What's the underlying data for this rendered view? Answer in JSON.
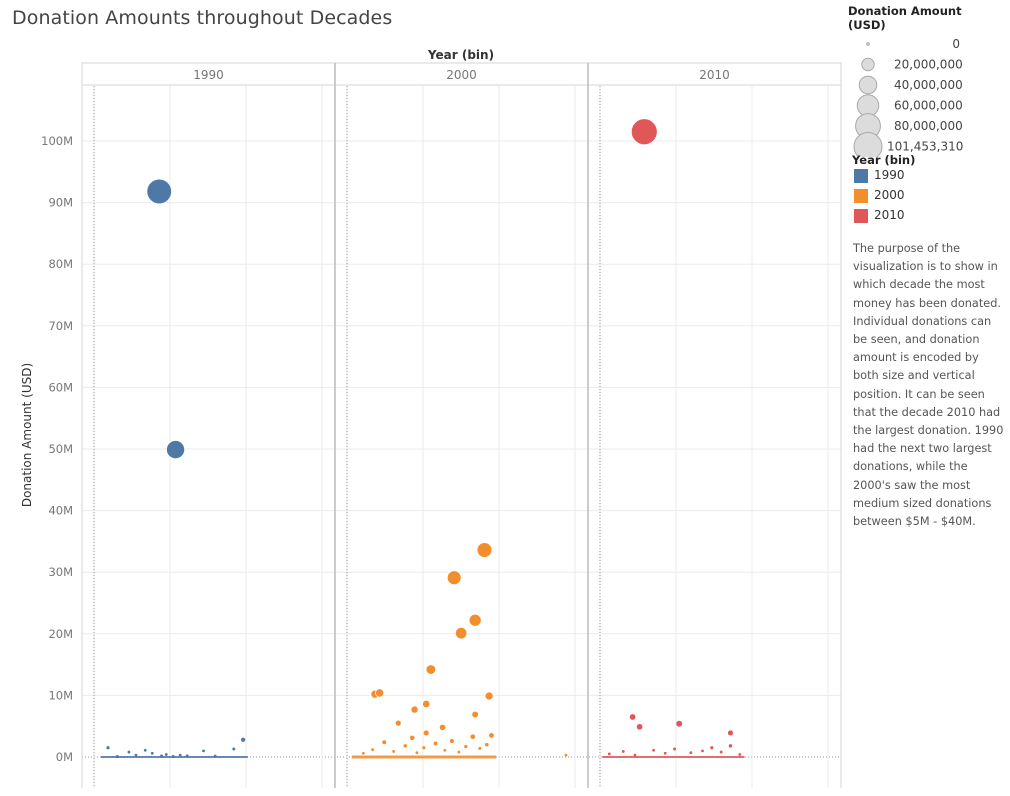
{
  "page_title": "Donation Amounts throughout Decades",
  "description": "The purpose of the visualization is to show in which decade the most money has been donated. Individual donations can be seen, and donation amount is encoded by both size and vertical position. It can be seen that the decade 2010 had the largest donation. 1990 had the next two largest donations, while the 2000's saw the most medium sized donations between $5M - $40M.",
  "size_legend": {
    "title": "Donation Amount (USD)",
    "entries": [
      {
        "label": "0",
        "value": 0
      },
      {
        "label": "20,000,000",
        "value": 20000000
      },
      {
        "label": "40,000,000",
        "value": 40000000
      },
      {
        "label": "60,000,000",
        "value": 60000000
      },
      {
        "label": "80,000,000",
        "value": 80000000
      },
      {
        "label": "101,453,310",
        "value": 101453310
      }
    ]
  },
  "color_legend": {
    "title": "Year (bin)",
    "entries": [
      {
        "label": "1990",
        "color": "#4e79a7"
      },
      {
        "label": "2000",
        "color": "#f28e2b"
      },
      {
        "label": "2010",
        "color": "#e15759"
      }
    ]
  },
  "chart_data": {
    "type": "scatter",
    "title": "Donation Amounts throughout Decades",
    "column_header": "Year (bin)",
    "panels": [
      "1990",
      "2000",
      "2010"
    ],
    "ylabel": "Donation Amount (USD)",
    "ylim": [
      -5000000,
      110000000
    ],
    "yticks": [
      0,
      10000000,
      20000000,
      30000000,
      40000000,
      50000000,
      60000000,
      70000000,
      80000000,
      90000000,
      100000000
    ],
    "ytick_labels": [
      "0M",
      "10M",
      "20M",
      "30M",
      "40M",
      "50M",
      "60M",
      "70M",
      "80M",
      "90M",
      "100M"
    ],
    "x_within_panel_range": [
      0,
      10
    ],
    "grid": true,
    "size_encodes": "Donation Amount (USD)",
    "size_max_value": 101453310,
    "series": [
      {
        "name": "1990",
        "color": "#4e79a7",
        "points": [
          {
            "x": 2.8,
            "y": 91800000
          },
          {
            "x": 3.5,
            "y": 49900000
          },
          {
            "x": 0.6,
            "y": 1500000
          },
          {
            "x": 1.5,
            "y": 800000
          },
          {
            "x": 1.8,
            "y": 300000
          },
          {
            "x": 2.2,
            "y": 1100000
          },
          {
            "x": 2.5,
            "y": 600000
          },
          {
            "x": 2.9,
            "y": 200000
          },
          {
            "x": 3.1,
            "y": 400000
          },
          {
            "x": 3.4,
            "y": 100000
          },
          {
            "x": 3.7,
            "y": 300000
          },
          {
            "x": 4.7,
            "y": 1000000
          },
          {
            "x": 6.0,
            "y": 1300000
          },
          {
            "x": 6.4,
            "y": 2800000
          },
          {
            "x": 1.0,
            "y": 100000
          },
          {
            "x": 4.0,
            "y": 200000
          },
          {
            "x": 5.2,
            "y": 150000
          }
        ]
      },
      {
        "name": "2000",
        "color": "#f28e2b",
        "points": [
          {
            "x": 5.9,
            "y": 33600000
          },
          {
            "x": 4.6,
            "y": 29100000
          },
          {
            "x": 5.5,
            "y": 22200000
          },
          {
            "x": 4.9,
            "y": 20100000
          },
          {
            "x": 3.6,
            "y": 14200000
          },
          {
            "x": 1.2,
            "y": 10200000
          },
          {
            "x": 1.4,
            "y": 10400000
          },
          {
            "x": 6.1,
            "y": 9900000
          },
          {
            "x": 2.9,
            "y": 7700000
          },
          {
            "x": 3.4,
            "y": 8600000
          },
          {
            "x": 5.5,
            "y": 6900000
          },
          {
            "x": 2.2,
            "y": 5500000
          },
          {
            "x": 4.1,
            "y": 4800000
          },
          {
            "x": 3.4,
            "y": 3900000
          },
          {
            "x": 0.7,
            "y": 600000
          },
          {
            "x": 1.1,
            "y": 1200000
          },
          {
            "x": 1.6,
            "y": 2400000
          },
          {
            "x": 2.0,
            "y": 900000
          },
          {
            "x": 2.5,
            "y": 1800000
          },
          {
            "x": 2.8,
            "y": 3100000
          },
          {
            "x": 3.0,
            "y": 700000
          },
          {
            "x": 3.3,
            "y": 1500000
          },
          {
            "x": 3.8,
            "y": 2200000
          },
          {
            "x": 4.2,
            "y": 1100000
          },
          {
            "x": 4.5,
            "y": 2600000
          },
          {
            "x": 4.8,
            "y": 800000
          },
          {
            "x": 5.1,
            "y": 1700000
          },
          {
            "x": 5.4,
            "y": 3300000
          },
          {
            "x": 5.7,
            "y": 1400000
          },
          {
            "x": 6.0,
            "y": 2000000
          },
          {
            "x": 6.2,
            "y": 3500000
          },
          {
            "x": 9.4,
            "y": 300000
          }
        ]
      },
      {
        "name": "2010",
        "color": "#e15759",
        "points": [
          {
            "x": 1.9,
            "y": 101500000
          },
          {
            "x": 1.4,
            "y": 6500000
          },
          {
            "x": 1.7,
            "y": 4900000
          },
          {
            "x": 3.4,
            "y": 5400000
          },
          {
            "x": 5.6,
            "y": 3900000
          },
          {
            "x": 0.4,
            "y": 500000
          },
          {
            "x": 1.0,
            "y": 900000
          },
          {
            "x": 1.5,
            "y": 300000
          },
          {
            "x": 2.3,
            "y": 1100000
          },
          {
            "x": 2.8,
            "y": 600000
          },
          {
            "x": 3.2,
            "y": 1300000
          },
          {
            "x": 3.9,
            "y": 700000
          },
          {
            "x": 4.4,
            "y": 1000000
          },
          {
            "x": 4.8,
            "y": 1500000
          },
          {
            "x": 5.2,
            "y": 800000
          },
          {
            "x": 5.6,
            "y": 1800000
          },
          {
            "x": 6.0,
            "y": 400000
          }
        ]
      }
    ],
    "baseline_cluster_note_count": 0
  }
}
